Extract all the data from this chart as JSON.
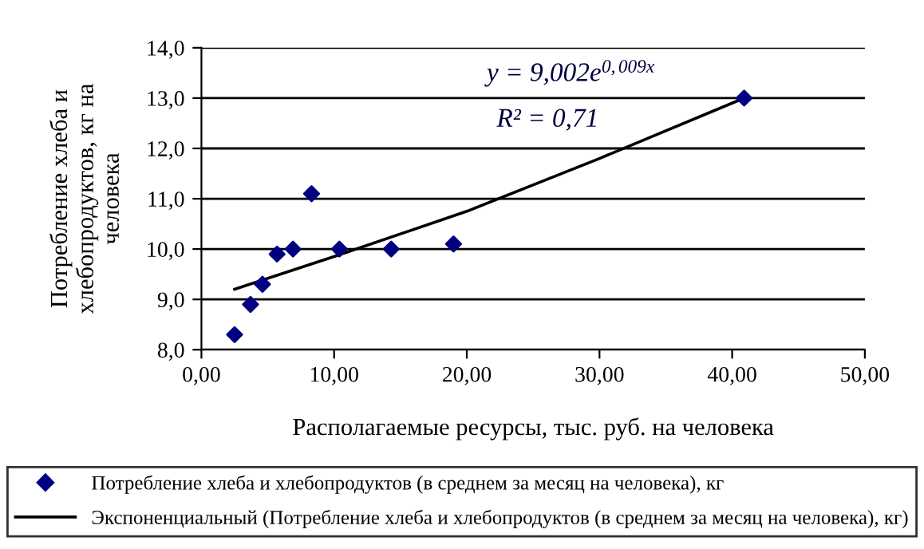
{
  "chart_data": {
    "type": "scatter",
    "xlabel": "Располагаемые ресурсы, тыс. руб. на человека",
    "ylabel": "Потребление хлеба и\nхлебопродуктов, кг на\nчеловека",
    "annotations": [
      "y = 9,002e$^{0,009x}$",
      "R² = 0,71"
    ],
    "series": [
      {
        "name": "Потребление хлеба и хлебопродуктов (в среднем за месяц на человека), кг",
        "color": "#000080",
        "marker": "diamond",
        "x": [
          2.5,
          3.7,
          4.6,
          5.7,
          6.9,
          8.3,
          10.4,
          14.3,
          19.0,
          40.9
        ],
        "values": [
          8.3,
          8.9,
          9.3,
          9.9,
          10.0,
          11.1,
          10.0,
          10.0,
          10.1,
          13.0
        ]
      },
      {
        "name": "Экспоненциальный (Потребление хлеба и хлебопродуктов (в среднем за месяц на человека), кг)",
        "type": "line",
        "color": "#000000",
        "marker": "none",
        "line_style": "solid",
        "x": [
          2.5,
          10,
          20,
          30,
          40.9
        ],
        "values": [
          9.2,
          9.85,
          10.75,
          11.8,
          13.0
        ]
      }
    ],
    "xlim": [
      0,
      50
    ],
    "xticks": [
      {
        "value": 0,
        "label": "0,00"
      },
      {
        "value": 10,
        "label": "10,00"
      },
      {
        "value": 20,
        "label": "20,00"
      },
      {
        "value": 30,
        "label": "30,00"
      },
      {
        "value": 40,
        "label": "40,00"
      },
      {
        "value": 50,
        "label": "50,00"
      }
    ],
    "ylim": [
      8,
      14
    ],
    "yticks": [
      {
        "value": 8,
        "label": "8,0"
      },
      {
        "value": 9,
        "label": "9,0"
      },
      {
        "value": 10,
        "label": "10,0"
      },
      {
        "value": 11,
        "label": "11,0"
      },
      {
        "value": 12,
        "label": "12,0"
      },
      {
        "value": 13,
        "label": "13,0"
      },
      {
        "value": 14,
        "label": "14,0"
      }
    ],
    "grid": "y",
    "legend": "bottom"
  }
}
